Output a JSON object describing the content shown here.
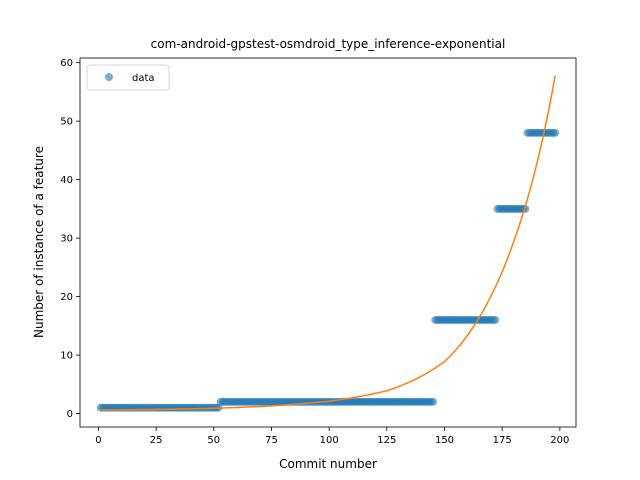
{
  "chart_data": {
    "type": "scatter",
    "title": "com-android-gpstest-osmdroid_type_inference-exponential",
    "xlabel": "Commit number",
    "ylabel": "Number of instance of a feature",
    "xlim": [
      -8,
      207
    ],
    "ylim": [
      -2.3,
      60.8
    ],
    "xticks": [
      0,
      25,
      50,
      75,
      100,
      125,
      150,
      175,
      200
    ],
    "yticks": [
      0,
      10,
      20,
      30,
      40,
      50,
      60
    ],
    "grid": false,
    "legend": {
      "position": "top-left",
      "entries": [
        "data"
      ]
    },
    "series": [
      {
        "name": "data",
        "kind": "scatter",
        "color": "#1f77b4",
        "segments": [
          {
            "x_start": 1,
            "x_end": 52,
            "y": 1
          },
          {
            "x_start": 53,
            "x_end": 145,
            "y": 2
          },
          {
            "x_start": 146,
            "x_end": 172,
            "y": 16
          },
          {
            "x_start": 173,
            "x_end": 185,
            "y": 35
          },
          {
            "x_start": 186,
            "x_end": 198,
            "y": 48
          }
        ]
      },
      {
        "kind": "line",
        "color": "#ff7f0e",
        "x_start": 1,
        "x_end": 198,
        "x": [
          1,
          25,
          50,
          75,
          100,
          125,
          150,
          160,
          170,
          180,
          190,
          198
        ],
        "y": [
          0.6,
          0.7,
          0.9,
          1.3,
          2.1,
          3.9,
          8.9,
          13.4,
          20.0,
          29.4,
          42.7,
          57.8
        ]
      }
    ]
  }
}
